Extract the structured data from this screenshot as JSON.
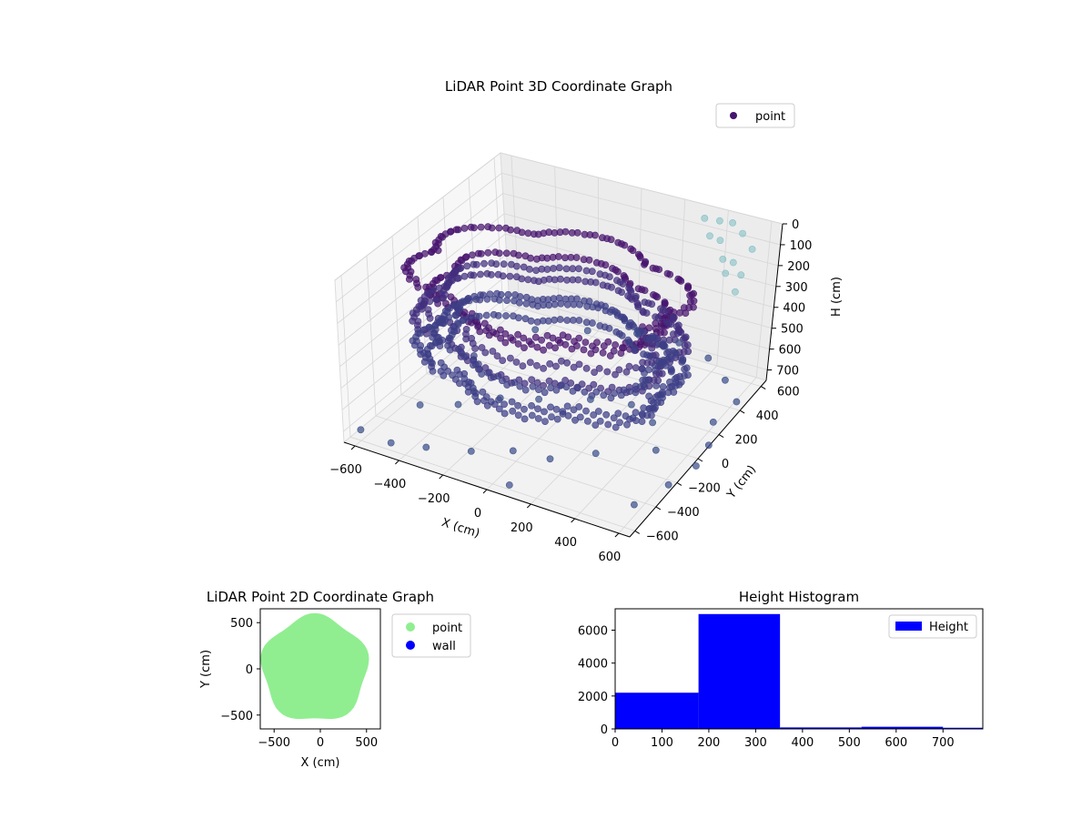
{
  "colors": {
    "background": "#ffffff",
    "pane_floor": "#f2f2f2",
    "pane_wall": "#f7f7f7",
    "grid": "#d6d6d6",
    "point_3d_dark": "#46146e",
    "point_3d_mid": "#3c4f8a",
    "point_3d_light": "#7fbec2",
    "point_2d": "#90ee90",
    "wall": "#0000ff",
    "histogram": "#0000ff"
  },
  "chart_data": [
    {
      "type": "scatter",
      "projection": "3d",
      "title": "LiDAR Point 3D Coordinate Graph",
      "xlabel": "X (cm)",
      "ylabel": "Y (cm)",
      "zlabel": "H (cm)",
      "x_ticks": [
        "−600",
        "−400",
        "−200",
        "0",
        "200",
        "400",
        "600"
      ],
      "y_ticks": [
        "−600",
        "−400",
        "−200",
        "0",
        "200",
        "400",
        "600"
      ],
      "z_ticks": [
        "0",
        "100",
        "200",
        "300",
        "400",
        "500",
        "600",
        "700"
      ],
      "xlim": [
        -650,
        650
      ],
      "ylim": [
        -650,
        650
      ],
      "zlim": [
        0,
        750
      ],
      "z_inverted": true,
      "grid": true,
      "legend": {
        "position": "upper-right",
        "entries": [
          "point"
        ]
      },
      "series": [
        {
          "name": "point",
          "rings": [
            {
              "h": 180,
              "r": 620,
              "n": 150
            },
            {
              "h": 260,
              "r": 520,
              "n": 120
            },
            {
              "h": 330,
              "r": 560,
              "n": 120
            },
            {
              "h": 400,
              "r": 600,
              "n": 140
            },
            {
              "h": 460,
              "r": 520,
              "n": 120
            },
            {
              "h": 520,
              "r": 600,
              "n": 130
            },
            {
              "h": 580,
              "r": 560,
              "n": 120
            }
          ],
          "ceiling_points": [
            [
              450,
              600,
              20
            ],
            [
              380,
              620,
              40
            ],
            [
              300,
              640,
              60
            ],
            [
              520,
              560,
              30
            ],
            [
              600,
              500,
              50
            ],
            [
              560,
              420,
              80
            ],
            [
              620,
              380,
              100
            ],
            [
              480,
              480,
              120
            ],
            [
              420,
              560,
              90
            ],
            [
              350,
              600,
              110
            ],
            [
              640,
              300,
              130
            ],
            [
              580,
              320,
              70
            ]
          ],
          "scattered_points": [
            [
              -450,
              -620,
              700
            ],
            [
              -300,
              -600,
              680
            ],
            [
              -150,
              -500,
              700
            ],
            [
              0,
              -420,
              690
            ],
            [
              150,
              -380,
              700
            ],
            [
              300,
              -260,
              690
            ],
            [
              -500,
              -300,
              700
            ],
            [
              -380,
              -200,
              710
            ],
            [
              -250,
              -80,
              700
            ],
            [
              -100,
              -20,
              690
            ],
            [
              80,
              100,
              700
            ],
            [
              250,
              150,
              700
            ],
            [
              400,
              60,
              690
            ],
            [
              500,
              -100,
              700
            ],
            [
              620,
              200,
              700
            ],
            [
              640,
              380,
              700
            ],
            [
              520,
              500,
              700
            ],
            [
              380,
              600,
              690
            ],
            [
              200,
              660,
              700
            ],
            [
              0,
              640,
              700
            ],
            [
              -200,
              560,
              700
            ],
            [
              -400,
              460,
              700
            ],
            [
              600,
              -500,
              700
            ],
            [
              660,
              -300,
              700
            ],
            [
              700,
              -120,
              700
            ],
            [
              680,
              40,
              700
            ],
            [
              -600,
              -600,
              700
            ],
            [
              100,
              -640,
              700
            ]
          ]
        }
      ]
    },
    {
      "type": "scatter",
      "title": "LiDAR Point 2D Coordinate Graph",
      "xlabel": "X (cm)",
      "ylabel": "Y (cm)",
      "x_ticks": [
        "−500",
        "0",
        "500"
      ],
      "y_ticks": [
        "500",
        "0",
        "−500"
      ],
      "xlim": [
        -650,
        650
      ],
      "ylim": [
        -650,
        650
      ],
      "legend": {
        "position": "outside-right",
        "entries": [
          "point",
          "wall"
        ]
      },
      "series": [
        {
          "name": "point",
          "shape": "disc",
          "radius": 570
        },
        {
          "name": "wall",
          "points": []
        }
      ]
    },
    {
      "type": "bar",
      "title": "Height Histogram",
      "x_ticks": [
        "0",
        "100",
        "200",
        "300",
        "400",
        "500",
        "600",
        "700"
      ],
      "y_ticks": [
        "0",
        "2000",
        "4000",
        "6000"
      ],
      "xlim": [
        0,
        785
      ],
      "ylim": [
        0,
        7300
      ],
      "legend": {
        "position": "upper-right",
        "entries": [
          "Height"
        ]
      },
      "series": [
        {
          "name": "Height",
          "bins": [
            {
              "start": 0,
              "end": 178,
              "count": 2200
            },
            {
              "start": 178,
              "end": 352,
              "count": 6980
            },
            {
              "start": 352,
              "end": 526,
              "count": 90
            },
            {
              "start": 526,
              "end": 700,
              "count": 130
            },
            {
              "start": 700,
              "end": 785,
              "count": 70
            }
          ]
        }
      ]
    }
  ]
}
